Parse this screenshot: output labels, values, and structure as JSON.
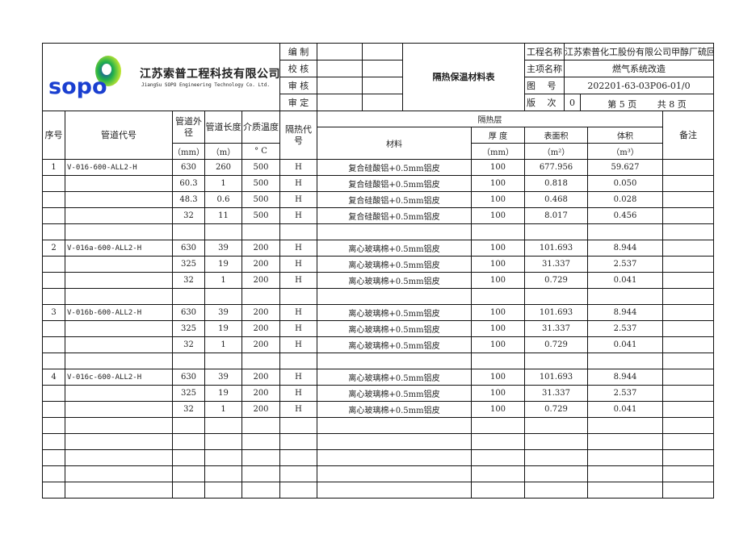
{
  "header": {
    "company_cn": "江苏索普工程科技有限公司",
    "company_en": "JiangSu SOPO Engineering Technology Co. Ltd.",
    "logo_text": "SOPO",
    "sign_labels": [
      "编 制",
      "校 核",
      "审 核",
      "审 定"
    ],
    "doc_title": "隔热保温材料表",
    "project_label": "工程名称",
    "project_value": "江苏索普化工股份有限公司甲醇厂硫回收二期装置优化项目",
    "item_label": "主项名称",
    "item_value": "燃气系统改造",
    "drawing_label": "图　 号",
    "drawing_value": "202201-63-03P06-01/0",
    "revision_label": "版　 次",
    "revision_value": "0",
    "page_text": "第 5 页",
    "total_text": "共 8 页"
  },
  "columns": {
    "no": "序号",
    "pipe_code": "管道代号",
    "od": "管道外径",
    "length": "管道长度",
    "temp": "介质温度",
    "code": "隔热代号",
    "layer": "隔热层",
    "material": "材料",
    "thickness": "厚 度",
    "area": "表面积",
    "volume": "体积",
    "remark": "备注",
    "od_unit": "（mm）",
    "length_unit": "（m）",
    "temp_unit": "° C",
    "thickness_unit": "（mm）",
    "area_unit": "（m²）",
    "volume_unit": "（m³）"
  },
  "rows": [
    [
      "1",
      "V-016-600-ALL2-H",
      "630",
      "260",
      "500",
      "H",
      "复合硅酸铝+0.5mm铝皮",
      "100",
      "677.956",
      "59.627",
      ""
    ],
    [
      "",
      "",
      "60.3",
      "1",
      "500",
      "H",
      "复合硅酸铝+0.5mm铝皮",
      "100",
      "0.818",
      "0.050",
      ""
    ],
    [
      "",
      "",
      "48.3",
      "0.6",
      "500",
      "H",
      "复合硅酸铝+0.5mm铝皮",
      "100",
      "0.468",
      "0.028",
      ""
    ],
    [
      "",
      "",
      "32",
      "11",
      "500",
      "H",
      "复合硅酸铝+0.5mm铝皮",
      "100",
      "8.017",
      "0.456",
      ""
    ],
    [
      "",
      "",
      "",
      "",
      "",
      "",
      "",
      "",
      "",
      "",
      ""
    ],
    [
      "2",
      "V-016a-600-ALL2-H",
      "630",
      "39",
      "200",
      "H",
      "离心玻璃棉+0.5mm铝皮",
      "100",
      "101.693",
      "8.944",
      ""
    ],
    [
      "",
      "",
      "325",
      "19",
      "200",
      "H",
      "离心玻璃棉+0.5mm铝皮",
      "100",
      "31.337",
      "2.537",
      ""
    ],
    [
      "",
      "",
      "32",
      "1",
      "200",
      "H",
      "离心玻璃棉+0.5mm铝皮",
      "100",
      "0.729",
      "0.041",
      ""
    ],
    [
      "",
      "",
      "",
      "",
      "",
      "",
      "",
      "",
      "",
      "",
      ""
    ],
    [
      "3",
      "V-016b-600-ALL2-H",
      "630",
      "39",
      "200",
      "H",
      "离心玻璃棉+0.5mm铝皮",
      "100",
      "101.693",
      "8.944",
      ""
    ],
    [
      "",
      "",
      "325",
      "19",
      "200",
      "H",
      "离心玻璃棉+0.5mm铝皮",
      "100",
      "31.337",
      "2.537",
      ""
    ],
    [
      "",
      "",
      "32",
      "1",
      "200",
      "H",
      "离心玻璃棉+0.5mm铝皮",
      "100",
      "0.729",
      "0.041",
      ""
    ],
    [
      "",
      "",
      "",
      "",
      "",
      "",
      "",
      "",
      "",
      "",
      ""
    ],
    [
      "4",
      "V-016c-600-ALL2-H",
      "630",
      "39",
      "200",
      "H",
      "离心玻璃棉+0.5mm铝皮",
      "100",
      "101.693",
      "8.944",
      ""
    ],
    [
      "",
      "",
      "325",
      "19",
      "200",
      "H",
      "离心玻璃棉+0.5mm铝皮",
      "100",
      "31.337",
      "2.537",
      ""
    ],
    [
      "",
      "",
      "32",
      "1",
      "200",
      "H",
      "离心玻璃棉+0.5mm铝皮",
      "100",
      "0.729",
      "0.041",
      ""
    ],
    [
      "",
      "",
      "",
      "",
      "",
      "",
      "",
      "",
      "",
      "",
      ""
    ],
    [
      "",
      "",
      "",
      "",
      "",
      "",
      "",
      "",
      "",
      "",
      ""
    ],
    [
      "",
      "",
      "",
      "",
      "",
      "",
      "",
      "",
      "",
      "",
      ""
    ],
    [
      "",
      "",
      "",
      "",
      "",
      "",
      "",
      "",
      "",
      "",
      ""
    ],
    [
      "",
      "",
      "",
      "",
      "",
      "",
      "",
      "",
      "",
      "",
      ""
    ]
  ]
}
